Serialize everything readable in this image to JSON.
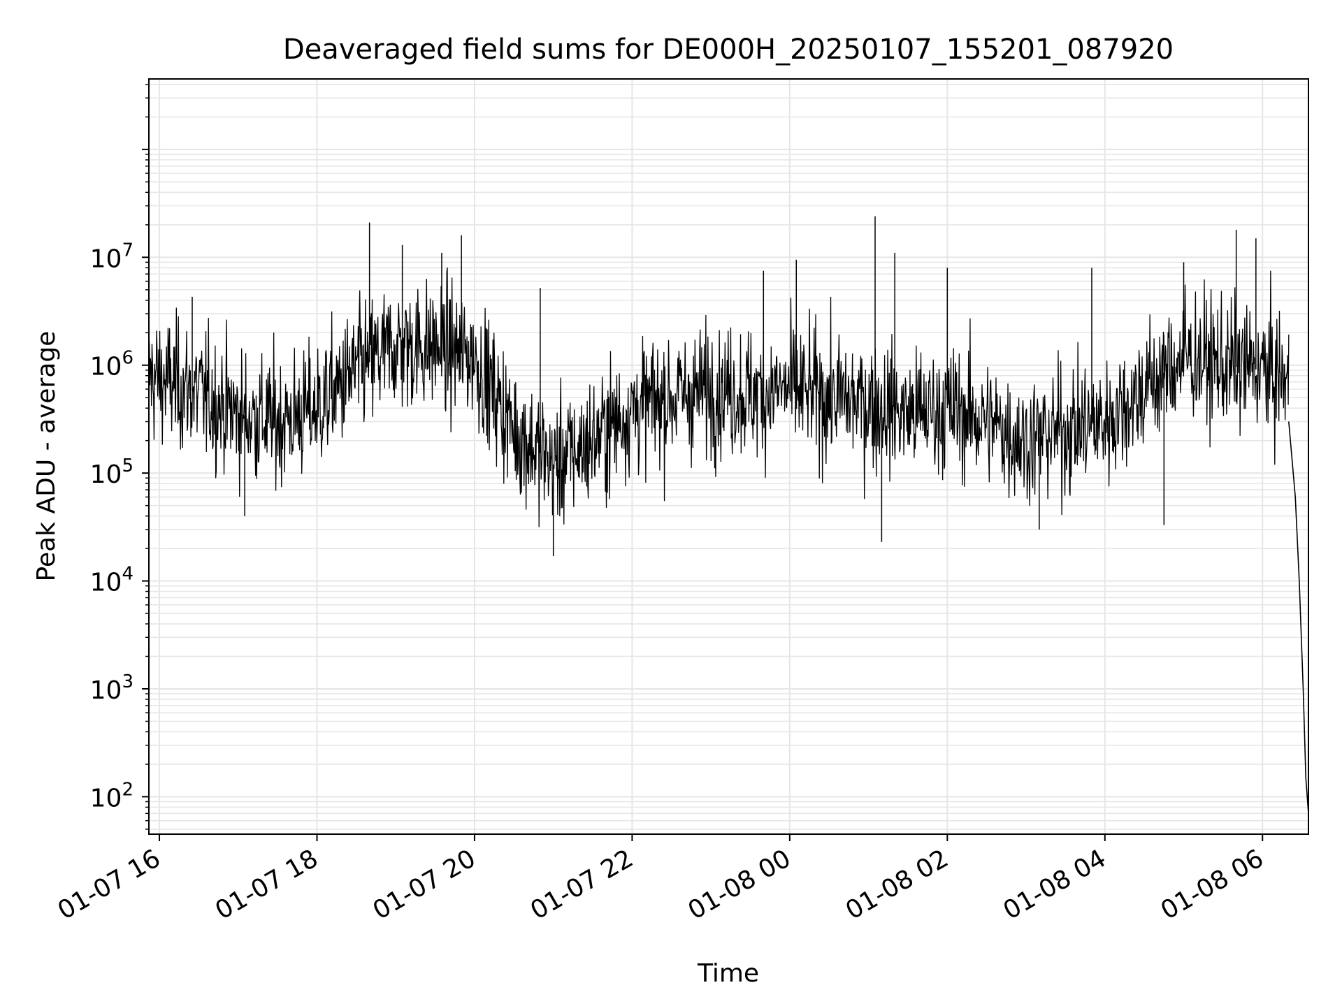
{
  "chart_data": {
    "type": "line",
    "title": "Deaveraged field sums for DE000H_20250107_155201_087920",
    "xlabel": "Time",
    "ylabel": "Peak ADU - average",
    "yscale": "log",
    "ylim": [
      45,
      450000000
    ],
    "xlim": [
      "2025-01-07 15:52",
      "2025-01-08 06:35"
    ],
    "grid": true,
    "line_color": "#000000",
    "grid_color": "#e6e6e6",
    "x_ticks": [
      {
        "t": "2025-01-07 16:00",
        "label": "01-07 16"
      },
      {
        "t": "2025-01-07 18:00",
        "label": "01-07 18"
      },
      {
        "t": "2025-01-07 20:00",
        "label": "01-07 20"
      },
      {
        "t": "2025-01-07 22:00",
        "label": "01-07 22"
      },
      {
        "t": "2025-01-08 00:00",
        "label": "01-08 00"
      },
      {
        "t": "2025-01-08 02:00",
        "label": "01-08 02"
      },
      {
        "t": "2025-01-08 04:00",
        "label": "01-08 04"
      },
      {
        "t": "2025-01-08 06:00",
        "label": "01-08 06"
      }
    ],
    "y_ticks": [
      {
        "value": 100,
        "base": "10",
        "exp": "2"
      },
      {
        "value": 1000,
        "base": "10",
        "exp": "3"
      },
      {
        "value": 10000,
        "base": "10",
        "exp": "4"
      },
      {
        "value": 100000,
        "base": "10",
        "exp": "5"
      },
      {
        "value": 1000000,
        "base": "10",
        "exp": "6"
      },
      {
        "value": 10000000,
        "base": "10",
        "exp": "7"
      }
    ],
    "series": [
      {
        "style": "noisy",
        "x": [
          "2025-01-07 15:52",
          "2025-01-07 16:30",
          "2025-01-07 17:00",
          "2025-01-07 17:30",
          "2025-01-07 18:00",
          "2025-01-07 18:30",
          "2025-01-07 19:00",
          "2025-01-07 19:30",
          "2025-01-07 20:00",
          "2025-01-07 20:30",
          "2025-01-07 21:00",
          "2025-01-07 21:30",
          "2025-01-07 22:00",
          "2025-01-07 22:30",
          "2025-01-07 23:00",
          "2025-01-07 23:30",
          "2025-01-08 00:00",
          "2025-01-08 00:30",
          "2025-01-08 01:00",
          "2025-01-08 01:30",
          "2025-01-08 02:00",
          "2025-01-08 02:30",
          "2025-01-08 03:00",
          "2025-01-08 03:30",
          "2025-01-08 04:00",
          "2025-01-08 04:30",
          "2025-01-08 05:00",
          "2025-01-08 05:30",
          "2025-01-08 06:00",
          "2025-01-08 06:20"
        ],
        "y": [
          800000,
          550000,
          350000,
          300000,
          400000,
          900000,
          1500000,
          1500000,
          1200000,
          250000,
          120000,
          200000,
          400000,
          500000,
          600000,
          550000,
          600000,
          500000,
          450000,
          350000,
          400000,
          300000,
          200000,
          250000,
          300000,
          600000,
          1200000,
          1000000,
          900000,
          700000
        ]
      },
      {
        "style": "drop",
        "x": [
          "2025-01-08 06:20",
          "2025-01-08 06:25",
          "2025-01-08 06:28",
          "2025-01-08 06:31",
          "2025-01-08 06:33",
          "2025-01-08 06:35"
        ],
        "y": [
          300000,
          60000,
          10000,
          1000,
          150,
          70
        ]
      }
    ],
    "spikes": [
      {
        "x": "2025-01-07 18:40",
        "y": 21000000
      },
      {
        "x": "2025-01-07 19:05",
        "y": 13000000
      },
      {
        "x": "2025-01-07 19:35",
        "y": 11000000
      },
      {
        "x": "2025-01-07 19:50",
        "y": 16000000
      },
      {
        "x": "2025-01-07 20:50",
        "y": 5200000
      },
      {
        "x": "2025-01-07 23:40",
        "y": 7500000
      },
      {
        "x": "2025-01-08 00:05",
        "y": 9500000
      },
      {
        "x": "2025-01-08 01:05",
        "y": 24000000
      },
      {
        "x": "2025-01-08 01:20",
        "y": 11000000
      },
      {
        "x": "2025-01-08 02:00",
        "y": 8000000
      },
      {
        "x": "2025-01-08 03:50",
        "y": 8000000
      },
      {
        "x": "2025-01-08 05:00",
        "y": 9000000
      },
      {
        "x": "2025-01-08 05:40",
        "y": 18000000
      },
      {
        "x": "2025-01-08 05:55",
        "y": 15000000
      },
      {
        "x": "2025-01-07 16:25",
        "y": 4300000
      },
      {
        "x": "2025-01-07 21:00",
        "y": 17000
      },
      {
        "x": "2025-01-08 01:10",
        "y": 23000
      },
      {
        "x": "2025-01-07 17:05",
        "y": 40000
      },
      {
        "x": "2025-01-08 03:10",
        "y": 30000
      },
      {
        "x": "2025-01-08 04:45",
        "y": 33000
      }
    ]
  }
}
